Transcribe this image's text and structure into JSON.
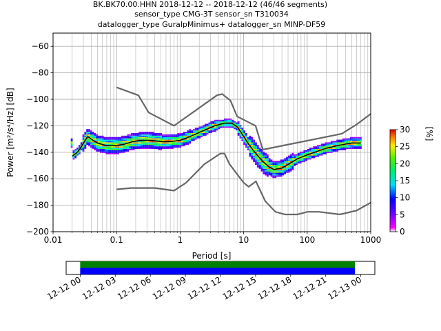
{
  "chart_data": [
    {
      "type": "heatmap",
      "title_lines": [
        "BK.BK70.00.HHN   2018-12-12 -- 2018-12-12  (46/46 segments)",
        "sensor_type CMG-3T sensor_sn T310034",
        "datalogger_type GuralpMinimus+ datalogger_sn MINP-DF59"
      ],
      "xlabel": "Period [s]",
      "ylabel": "Power [m²/s⁴/Hz] [dB]",
      "x_scale": "log",
      "xlim": [
        0.01,
        1000
      ],
      "ylim": [
        -200,
        -50
      ],
      "x_ticks": [
        {
          "v": 0.01,
          "label": "0.01"
        },
        {
          "v": 0.1,
          "label": "0.1"
        },
        {
          "v": 1,
          "label": "1"
        },
        {
          "v": 10,
          "label": "10"
        },
        {
          "v": 100,
          "label": "100"
        },
        {
          "v": 1000,
          "label": "1000"
        }
      ],
      "y_ticks": [
        {
          "v": -60,
          "label": "−60"
        },
        {
          "v": -80,
          "label": "−80"
        },
        {
          "v": -100,
          "label": "−100"
        },
        {
          "v": -120,
          "label": "−120"
        },
        {
          "v": -140,
          "label": "−140"
        },
        {
          "v": -160,
          "label": "−160"
        },
        {
          "v": -180,
          "label": "−180"
        },
        {
          "v": -200,
          "label": "−200"
        }
      ],
      "grid": true,
      "noise_models": [
        {
          "points": [
            [
              0.1,
              -91
            ],
            [
              0.22,
              -97
            ],
            [
              0.32,
              -110
            ],
            [
              0.8,
              -120
            ],
            [
              3.8,
              -97
            ],
            [
              4.6,
              -96
            ],
            [
              6.2,
              -101
            ],
            [
              7.9,
              -113
            ],
            [
              15.4,
              -120
            ],
            [
              20,
              -138
            ],
            [
              350,
              -126
            ],
            [
              600,
              -119
            ],
            [
              1000,
              -111
            ]
          ]
        },
        {
          "points": [
            [
              0.1,
              -168
            ],
            [
              0.17,
              -167
            ],
            [
              0.4,
              -167
            ],
            [
              0.8,
              -169
            ],
            [
              1.24,
              -163
            ],
            [
              2.4,
              -149
            ],
            [
              4.3,
              -141
            ],
            [
              5,
              -141
            ],
            [
              6,
              -149
            ],
            [
              10,
              -163
            ],
            [
              12,
              -166
            ],
            [
              15.6,
              -162
            ],
            [
              21.9,
              -177
            ],
            [
              31.6,
              -185
            ],
            [
              45,
              -187
            ],
            [
              70,
              -187
            ],
            [
              101,
              -185
            ],
            [
              154,
              -185
            ],
            [
              328,
              -187
            ],
            [
              600,
              -184
            ],
            [
              1000,
              -178
            ]
          ]
        }
      ],
      "mean_curve": [
        [
          0.02,
          -143
        ],
        [
          0.024,
          -140
        ],
        [
          0.027,
          -137
        ],
        [
          0.032,
          -131
        ],
        [
          0.035,
          -128
        ],
        [
          0.04,
          -130
        ],
        [
          0.05,
          -133
        ],
        [
          0.07,
          -135
        ],
        [
          0.1,
          -135
        ],
        [
          0.13,
          -134
        ],
        [
          0.18,
          -132
        ],
        [
          0.25,
          -131
        ],
        [
          0.35,
          -131
        ],
        [
          0.5,
          -132
        ],
        [
          0.7,
          -132
        ],
        [
          1,
          -131
        ],
        [
          1.3,
          -129
        ],
        [
          1.8,
          -126
        ],
        [
          2.5,
          -123
        ],
        [
          3.5,
          -120
        ],
        [
          5,
          -118
        ],
        [
          6.5,
          -118
        ],
        [
          8,
          -121
        ],
        [
          10,
          -128
        ],
        [
          12,
          -134
        ],
        [
          15,
          -140
        ],
        [
          20,
          -147
        ],
        [
          25,
          -151
        ],
        [
          30,
          -153
        ],
        [
          40,
          -152
        ],
        [
          55,
          -148
        ],
        [
          70,
          -145
        ],
        [
          100,
          -142
        ],
        [
          150,
          -139
        ],
        [
          200,
          -137
        ],
        [
          300,
          -135
        ],
        [
          500,
          -133
        ],
        [
          700,
          -133
        ]
      ],
      "colorbar": {
        "label": "[%]",
        "range": [
          0,
          30
        ],
        "ticks": [
          {
            "v": 0,
            "label": "0"
          },
          {
            "v": 5,
            "label": "5"
          },
          {
            "v": 10,
            "label": "10"
          },
          {
            "v": 15,
            "label": "15"
          },
          {
            "v": 20,
            "label": "20"
          },
          {
            "v": 25,
            "label": "25"
          },
          {
            "v": 30,
            "label": "30"
          }
        ]
      }
    },
    {
      "type": "bar",
      "x_ticks": [
        {
          "v": 0,
          "label": "12-12 00"
        },
        {
          "v": 3,
          "label": "12-12 03"
        },
        {
          "v": 6,
          "label": "12-12 06"
        },
        {
          "v": 9,
          "label": "12-12 09"
        },
        {
          "v": 12,
          "label": "12-12 12"
        },
        {
          "v": 15,
          "label": "12-12 15"
        },
        {
          "v": 18,
          "label": "12-12 18"
        },
        {
          "v": 21,
          "label": "12-12 21"
        },
        {
          "v": 24,
          "label": "12-13 00"
        }
      ],
      "xlim": [
        -1.2,
        25.2
      ],
      "bars": [
        {
          "start": 0,
          "end": 23.5,
          "color": "#008000"
        },
        {
          "start": 0,
          "end": 23.5,
          "color": "#0000ff"
        }
      ]
    }
  ]
}
